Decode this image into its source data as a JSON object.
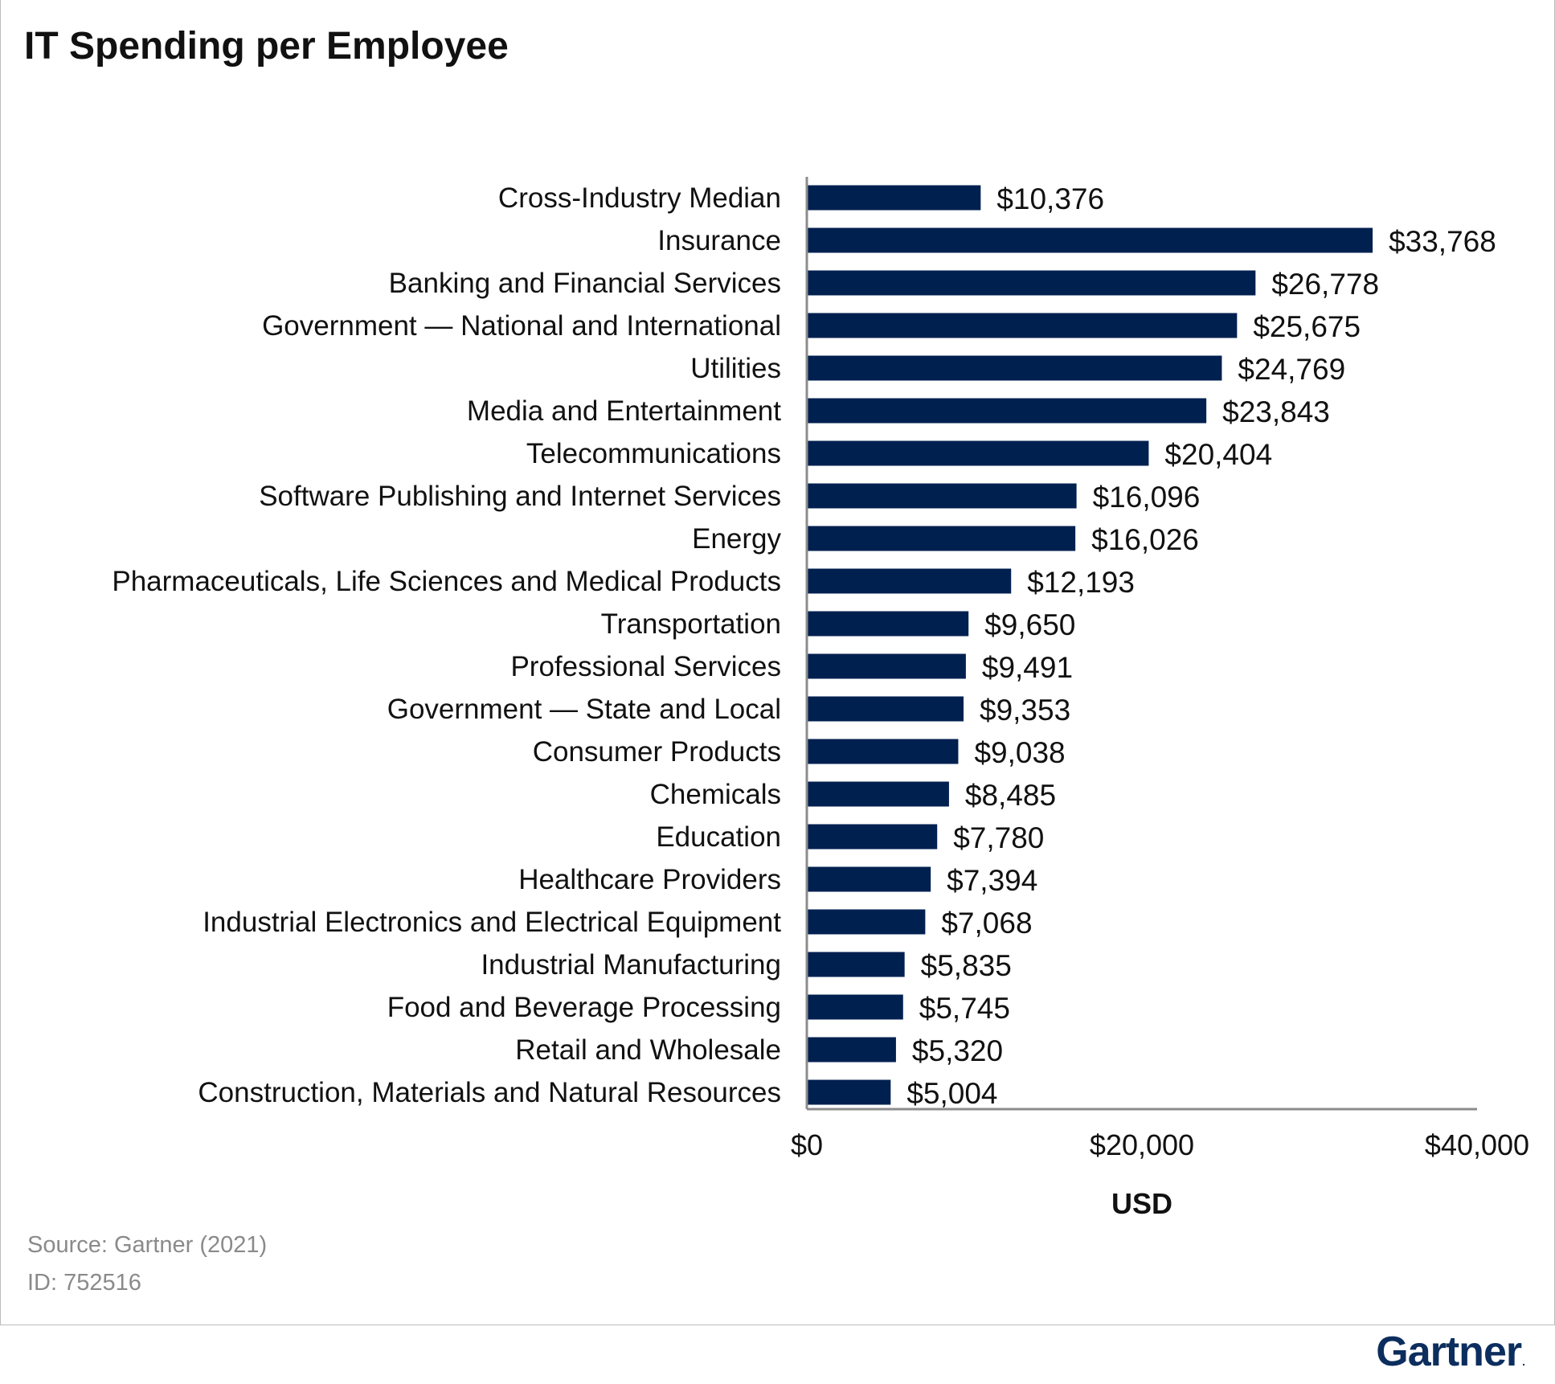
{
  "chart_data": {
    "type": "bar",
    "orientation": "horizontal",
    "title": "IT Spending per Employee",
    "xlabel": "USD",
    "ylabel": "",
    "xlim": [
      0,
      40000
    ],
    "x_ticks": [
      "$0",
      "$20,000",
      "$40,000"
    ],
    "bar_color": "#002050",
    "categories": [
      "Cross-Industry Median",
      "Insurance",
      "Banking and Financial Services",
      "Government — National and International",
      "Utilities",
      "Media and Entertainment",
      "Telecommunications",
      "Software Publishing and Internet Services",
      "Energy",
      "Pharmaceuticals, Life Sciences and Medical Products",
      "Transportation",
      "Professional Services",
      "Government — State and Local",
      "Consumer Products",
      "Chemicals",
      "Education",
      "Healthcare Providers",
      "Industrial Electronics and Electrical Equipment",
      "Industrial Manufacturing",
      "Food and Beverage Processing",
      "Retail and Wholesale",
      "Construction, Materials and Natural Resources"
    ],
    "values": [
      10376,
      33768,
      26778,
      25675,
      24769,
      23843,
      20404,
      16096,
      16026,
      12193,
      9650,
      9491,
      9353,
      9038,
      8485,
      7780,
      7394,
      7068,
      5835,
      5745,
      5320,
      5004
    ],
    "value_labels": [
      "$10,376",
      "$33,768",
      "$26,778",
      "$25,675",
      "$24,769",
      "$23,843",
      "$20,404",
      "$16,096",
      "$16,026",
      "$12,193",
      "$9,650",
      "$9,491",
      "$9,353",
      "$9,038",
      "$8,485",
      "$7,780",
      "$7,394",
      "$7,068",
      "$5,835",
      "$5,745",
      "$5,320",
      "$5,004"
    ],
    "grid": false,
    "legend": "none"
  },
  "footer": {
    "source": "Source: Gartner (2021)",
    "id": "ID: 752516"
  },
  "logo": {
    "text": "Gartner",
    "mark": "."
  }
}
